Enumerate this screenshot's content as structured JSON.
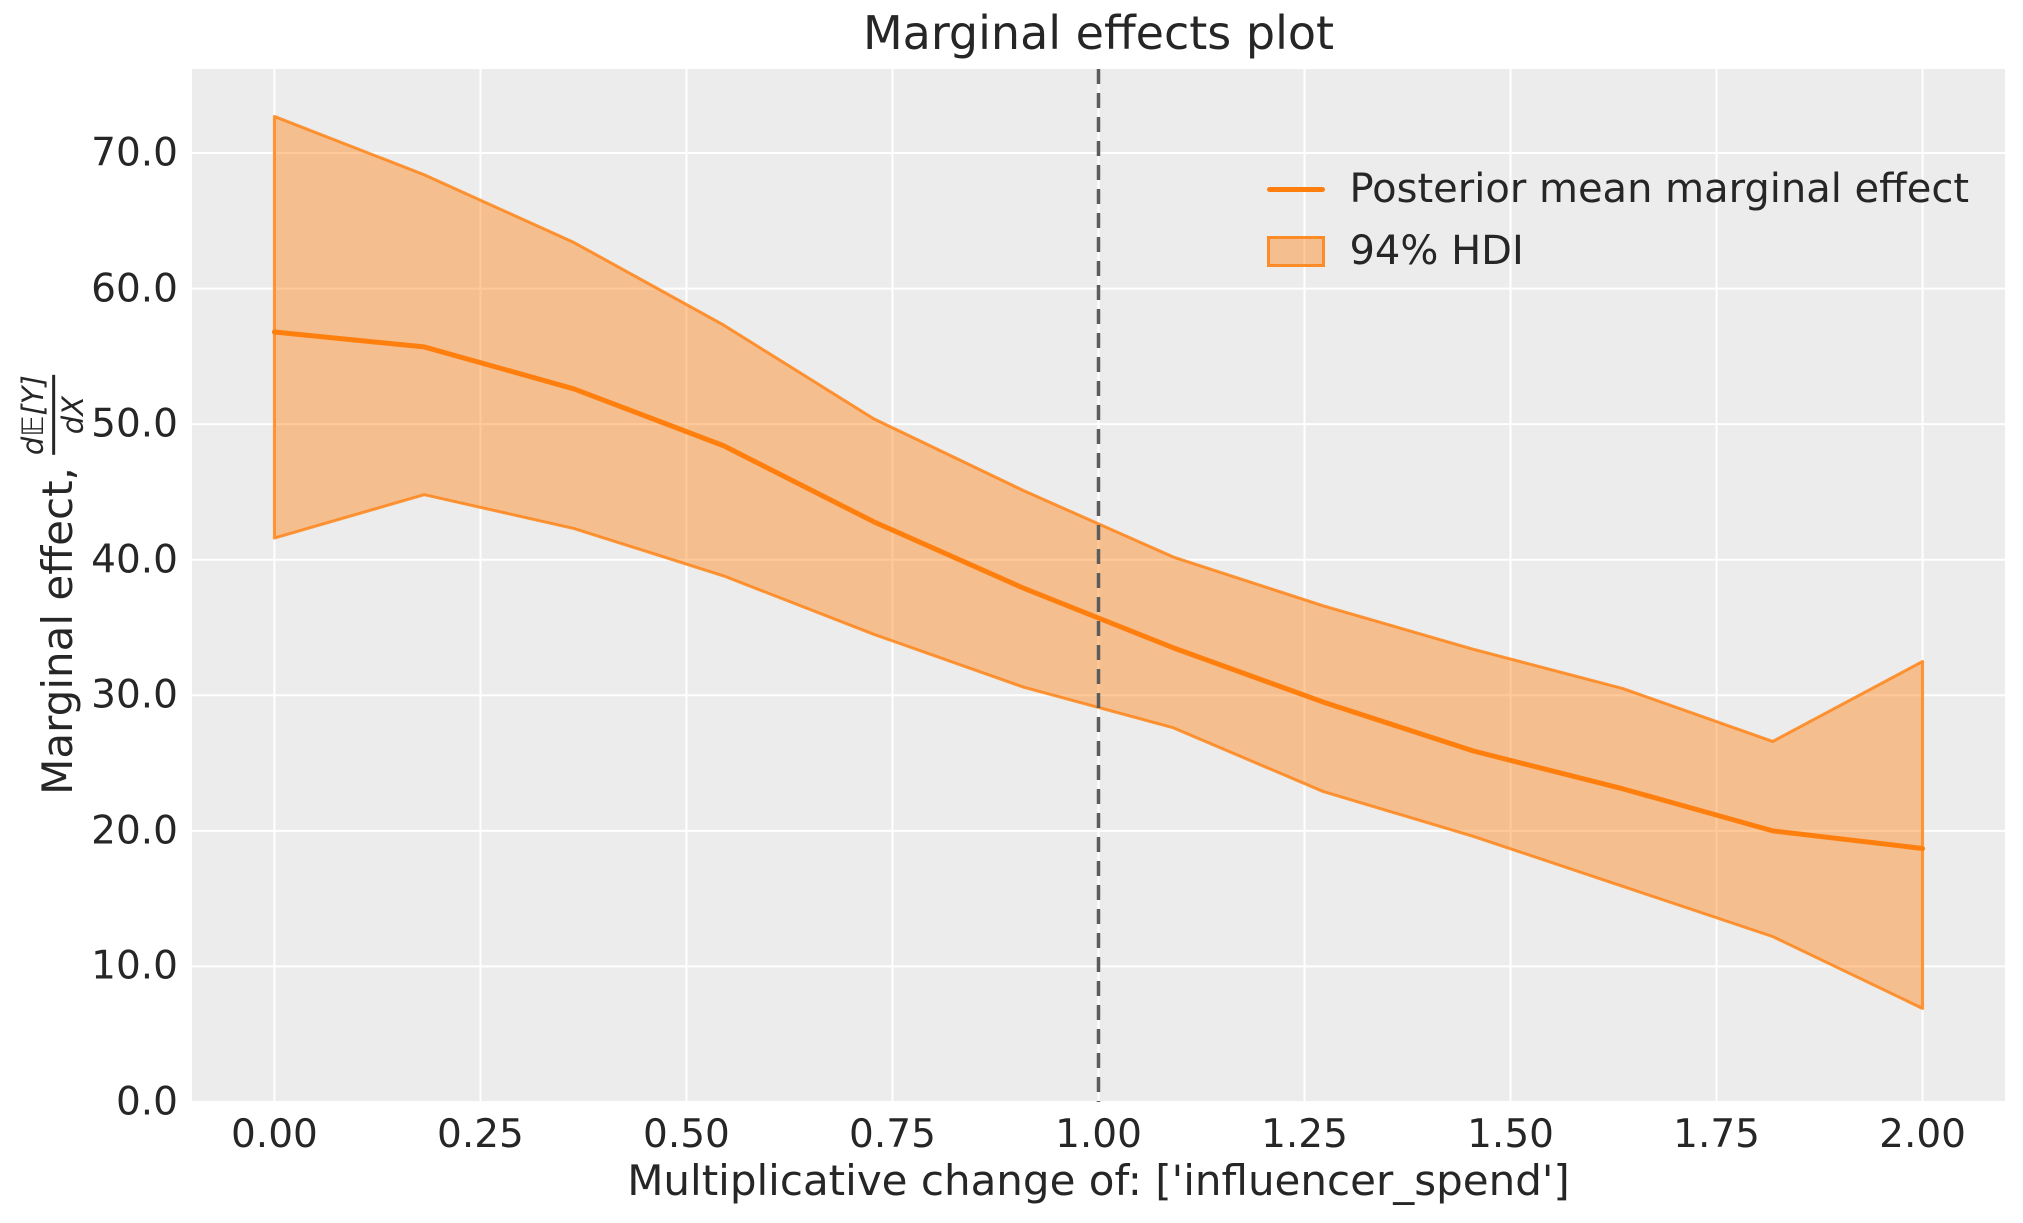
{
  "page": {
    "title": "Marginal effects plot",
    "colors": {
      "background": "#ffffff",
      "plot_background": "#ececec",
      "grid": "#ffffff",
      "line": "#ff7f0e",
      "band_fill": "rgba(255,127,14,0.42)",
      "band_edge": "rgba(255,127,14,0.8)",
      "reference_line": "#5c5c5c",
      "text": "#262626"
    }
  },
  "legend": {
    "items": [
      {
        "label": "Posterior mean marginal effect",
        "swatch": "line"
      },
      {
        "label": "94% HDI",
        "swatch": "patch"
      }
    ]
  },
  "axes": {
    "xlabel": "Multiplicative change of: ['influencer_spend']",
    "ylabel_prefix": "Marginal effect,",
    "ylabel_frac_numerator": "d𝔼[Y]",
    "ylabel_frac_denominator": "dX",
    "xtick_labels": [
      "0.00",
      "0.25",
      "0.50",
      "0.75",
      "1.00",
      "1.25",
      "1.50",
      "1.75",
      "2.00"
    ],
    "ytick_labels": [
      "0.0",
      "10.0",
      "20.0",
      "30.0",
      "40.0",
      "50.0",
      "60.0",
      "70.0"
    ]
  },
  "chart_data": {
    "type": "line",
    "title": "Marginal effects plot",
    "xlabel": "Multiplicative change of: ['influencer_spend']",
    "ylabel": "Marginal effect, d𝔼[Y]/dX",
    "x": [
      0.0,
      0.1818,
      0.3636,
      0.5455,
      0.7273,
      0.9091,
      1.0909,
      1.2727,
      1.4545,
      1.6364,
      1.8182,
      2.0
    ],
    "series": [
      {
        "name": "Posterior mean marginal effect",
        "values": [
          56.8,
          55.7,
          52.6,
          48.4,
          42.8,
          37.9,
          33.5,
          29.5,
          25.9,
          23.1,
          20.0,
          18.7
        ]
      },
      {
        "name": "94% HDI upper",
        "values": [
          72.7,
          68.4,
          63.4,
          57.3,
          50.4,
          45.1,
          40.2,
          36.6,
          33.4,
          30.5,
          26.6,
          32.5
        ]
      },
      {
        "name": "94% HDI lower",
        "values": [
          41.6,
          44.8,
          42.3,
          38.8,
          34.5,
          30.6,
          27.6,
          22.9,
          19.6,
          15.9,
          12.2,
          6.9
        ]
      }
    ],
    "reference_line_x": 1.0,
    "xlim": [
      -0.1,
      2.1
    ],
    "ylim": [
      0,
      76.2
    ],
    "xticks": [
      0.0,
      0.25,
      0.5,
      0.75,
      1.0,
      1.25,
      1.5,
      1.75,
      2.0
    ],
    "yticks": [
      0.0,
      10.0,
      20.0,
      30.0,
      40.0,
      50.0,
      60.0,
      70.0
    ],
    "grid": true,
    "legend_position": "upper right"
  }
}
